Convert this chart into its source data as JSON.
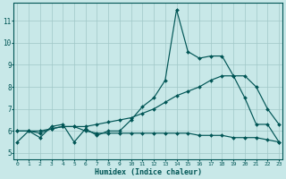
{
  "background_color": "#c8e8e8",
  "line_color": "#005555",
  "grid_color": "#a0c8c8",
  "xlabel": "Humidex (Indice chaleur)",
  "x_values": [
    0,
    1,
    2,
    3,
    4,
    5,
    6,
    7,
    8,
    9,
    10,
    11,
    12,
    13,
    14,
    15,
    16,
    17,
    18,
    19,
    20,
    21,
    22,
    23
  ],
  "line1_y": [
    5.5,
    6.0,
    5.7,
    6.2,
    6.3,
    5.5,
    6.1,
    5.8,
    6.0,
    6.0,
    6.5,
    7.1,
    7.5,
    8.3,
    11.5,
    9.6,
    9.3,
    9.4,
    9.4,
    8.5,
    7.5,
    6.3,
    6.3,
    5.5
  ],
  "line2_y": [
    6.0,
    6.0,
    6.0,
    6.1,
    6.2,
    6.2,
    6.2,
    6.3,
    6.4,
    6.5,
    6.6,
    6.8,
    7.0,
    7.3,
    7.6,
    7.8,
    8.0,
    8.3,
    8.5,
    8.5,
    8.5,
    8.0,
    7.0,
    6.3
  ],
  "line3_y": [
    6.0,
    6.0,
    5.9,
    6.1,
    6.2,
    6.2,
    6.0,
    5.9,
    5.9,
    5.9,
    5.9,
    5.9,
    5.9,
    5.9,
    5.9,
    5.9,
    5.8,
    5.8,
    5.8,
    5.7,
    5.7,
    5.7,
    5.6,
    5.5
  ],
  "yticks": [
    5,
    6,
    7,
    8,
    9,
    10,
    11
  ],
  "xticks": [
    0,
    1,
    2,
    3,
    4,
    5,
    6,
    7,
    8,
    9,
    10,
    11,
    12,
    13,
    14,
    15,
    16,
    17,
    18,
    19,
    20,
    21,
    22,
    23
  ],
  "ylim_bottom": 4.7,
  "ylim_top": 11.8,
  "xlim_left": -0.3,
  "xlim_right": 23.3
}
